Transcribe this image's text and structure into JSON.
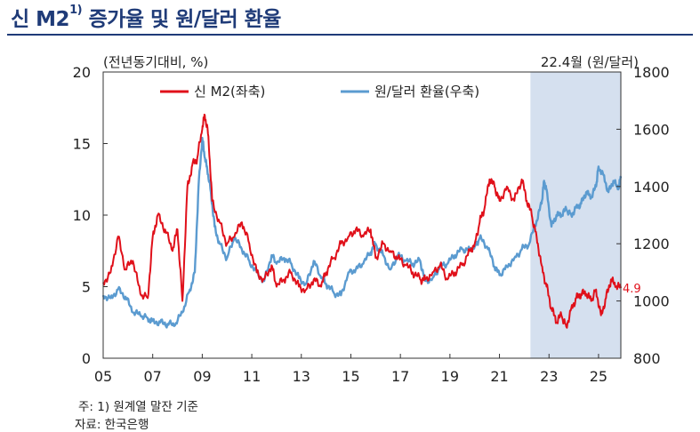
{
  "title": {
    "main": "신 M2",
    "sup": "1)",
    "rest": " 증가율 및 원/달러 환율"
  },
  "footnote": "주: 1) 원계열 말잔 기준",
  "source": "자료: 한국은행",
  "chart_data": {
    "type": "line",
    "left_axis_label": "(전년동기대비, %)",
    "right_axis_label": "22.4월  (원/달러)",
    "ylim_left": [
      0,
      20
    ],
    "yticks_left": [
      "0",
      "5",
      "10",
      "15",
      "20"
    ],
    "ylim_right": [
      800,
      1800
    ],
    "yticks_right": [
      "800",
      "1000",
      "1200",
      "1400",
      "1600",
      "1800"
    ],
    "xlim": [
      2005,
      2025.9
    ],
    "xtick_labels": [
      "05",
      "07",
      "09",
      "11",
      "13",
      "15",
      "17",
      "19",
      "21",
      "23",
      "25"
    ],
    "shaded_region": [
      2022.25,
      2025.9
    ],
    "end_label": "4.9",
    "grid": false,
    "legend_placement": "top-left",
    "series": [
      {
        "name": "신 M2(좌축)",
        "axis": "left",
        "color": "#e0101a",
        "x": [
          2005.0,
          2005.3,
          2005.6,
          2005.9,
          2006.2,
          2006.5,
          2006.8,
          2007.0,
          2007.2,
          2007.5,
          2007.8,
          2008.0,
          2008.2,
          2008.4,
          2008.6,
          2008.8,
          2009.0,
          2009.1,
          2009.25,
          2009.4,
          2009.7,
          2010.0,
          2010.3,
          2010.6,
          2010.9,
          2011.2,
          2011.5,
          2011.8,
          2012.0,
          2012.3,
          2012.6,
          2012.9,
          2013.2,
          2013.5,
          2013.8,
          2014.0,
          2014.3,
          2014.6,
          2014.9,
          2015.2,
          2015.5,
          2015.8,
          2016.0,
          2016.3,
          2016.6,
          2016.9,
          2017.2,
          2017.5,
          2017.8,
          2018.0,
          2018.3,
          2018.6,
          2018.9,
          2019.2,
          2019.5,
          2019.8,
          2020.0,
          2020.2,
          2020.4,
          2020.6,
          2020.8,
          2021.0,
          2021.3,
          2021.6,
          2021.9,
          2022.1,
          2022.3,
          2022.5,
          2022.7,
          2022.9,
          2023.1,
          2023.3,
          2023.5,
          2023.7,
          2023.9,
          2024.1,
          2024.3,
          2024.5,
          2024.7,
          2024.9,
          2025.1,
          2025.3,
          2025.5,
          2025.7,
          2025.9
        ],
        "values": [
          5.3,
          6.0,
          8.5,
          6.2,
          6.8,
          4.5,
          4.2,
          8.5,
          10.0,
          9.0,
          7.5,
          9.0,
          4.0,
          12.0,
          13.5,
          14.0,
          16.0,
          17.0,
          15.5,
          11.0,
          9.5,
          8.0,
          8.5,
          9.5,
          8.0,
          6.0,
          5.5,
          6.5,
          5.0,
          5.5,
          6.0,
          5.0,
          4.8,
          5.5,
          5.0,
          6.0,
          7.0,
          8.0,
          8.5,
          9.0,
          8.5,
          9.0,
          7.0,
          8.0,
          7.5,
          7.0,
          6.5,
          6.0,
          5.5,
          5.5,
          6.0,
          6.5,
          5.5,
          6.0,
          6.5,
          7.5,
          8.0,
          9.5,
          10.5,
          12.5,
          12.0,
          11.0,
          12.0,
          11.0,
          12.5,
          11.0,
          10.0,
          8.5,
          6.5,
          5.0,
          3.5,
          2.5,
          3.0,
          2.2,
          3.5,
          4.2,
          4.5,
          4.5,
          4.0,
          4.8,
          3.0,
          4.2,
          5.5,
          5.0,
          4.9
        ]
      },
      {
        "name": "원/달러 환율(우축)",
        "axis": "right",
        "color": "#5b9bd0",
        "x": [
          2005.0,
          2005.3,
          2005.6,
          2005.9,
          2006.2,
          2006.5,
          2006.8,
          2007.0,
          2007.3,
          2007.6,
          2007.9,
          2008.2,
          2008.5,
          2008.7,
          2008.85,
          2009.0,
          2009.1,
          2009.2,
          2009.35,
          2009.5,
          2009.7,
          2010.0,
          2010.3,
          2010.6,
          2010.9,
          2011.2,
          2011.5,
          2011.8,
          2012.0,
          2012.3,
          2012.6,
          2012.9,
          2013.2,
          2013.5,
          2013.8,
          2014.0,
          2014.3,
          2014.6,
          2014.9,
          2015.2,
          2015.5,
          2015.8,
          2016.0,
          2016.3,
          2016.6,
          2016.9,
          2017.2,
          2017.5,
          2017.8,
          2018.0,
          2018.3,
          2018.6,
          2018.9,
          2019.2,
          2019.5,
          2019.8,
          2020.0,
          2020.2,
          2020.5,
          2020.8,
          2021.0,
          2021.3,
          2021.6,
          2021.9,
          2022.2,
          2022.5,
          2022.7,
          2022.8,
          2022.9,
          2023.1,
          2023.3,
          2023.5,
          2023.7,
          2023.9,
          2024.1,
          2024.3,
          2024.5,
          2024.7,
          2024.9,
          2025.0,
          2025.2,
          2025.4,
          2025.6,
          2025.8,
          2025.9
        ],
        "values": [
          1020,
          1010,
          1040,
          1015,
          960,
          950,
          940,
          930,
          925,
          920,
          915,
          960,
          1040,
          1100,
          1400,
          1570,
          1500,
          1460,
          1380,
          1260,
          1200,
          1150,
          1220,
          1180,
          1140,
          1100,
          1070,
          1160,
          1130,
          1150,
          1130,
          1080,
          1060,
          1140,
          1080,
          1060,
          1030,
          1020,
          1100,
          1110,
          1130,
          1170,
          1200,
          1160,
          1110,
          1160,
          1140,
          1130,
          1140,
          1070,
          1080,
          1120,
          1130,
          1160,
          1180,
          1180,
          1190,
          1220,
          1190,
          1120,
          1090,
          1120,
          1150,
          1180,
          1200,
          1280,
          1340,
          1420,
          1390,
          1260,
          1300,
          1300,
          1320,
          1300,
          1330,
          1340,
          1380,
          1360,
          1400,
          1470,
          1440,
          1380,
          1420,
          1390,
          1430
        ]
      }
    ]
  }
}
